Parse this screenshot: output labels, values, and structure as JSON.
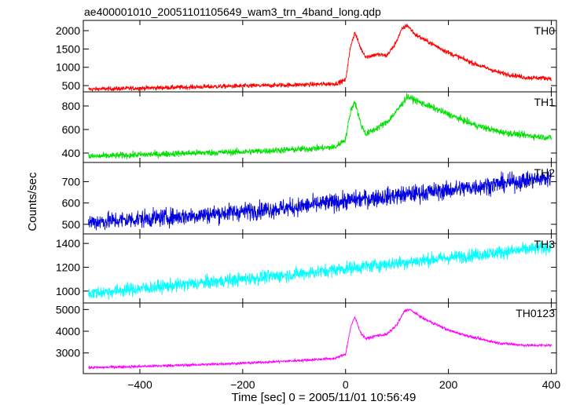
{
  "title": "ae400001010_20051101105649_wam3_trn_4band_long.qdp",
  "ylabel": "Counts/sec",
  "xlabel": "Time [sec] 0 = 2005/11/01 10:56:49",
  "chart_data": [
    {
      "type": "line",
      "name": "TH0",
      "color": "#ff0000",
      "xlim": [
        -510,
        410
      ],
      "ylim": [
        330,
        2280
      ],
      "yticks": [
        500,
        1000,
        1500,
        2000
      ],
      "noise": 45,
      "x": [
        -500,
        -400,
        -300,
        -200,
        -100,
        -20,
        0,
        10,
        18,
        30,
        40,
        60,
        80,
        95,
        110,
        120,
        135,
        160,
        200,
        250,
        300,
        350,
        400
      ],
      "y": [
        400,
        430,
        460,
        490,
        520,
        550,
        650,
        1600,
        1950,
        1500,
        1280,
        1350,
        1320,
        1600,
        2050,
        2150,
        1900,
        1700,
        1400,
        1100,
        850,
        720,
        700
      ]
    },
    {
      "type": "line",
      "name": "TH1",
      "color": "#00e000",
      "xlim": [
        -510,
        410
      ],
      "ylim": [
        320,
        920
      ],
      "yticks": [
        400,
        600,
        800
      ],
      "noise": 20,
      "x": [
        -500,
        -400,
        -300,
        -200,
        -100,
        -20,
        0,
        10,
        18,
        30,
        40,
        60,
        80,
        100,
        120,
        150,
        200,
        250,
        300,
        350,
        400
      ],
      "y": [
        370,
        385,
        400,
        410,
        430,
        450,
        520,
        760,
        840,
        640,
        560,
        610,
        660,
        760,
        880,
        820,
        730,
        640,
        580,
        550,
        530
      ]
    },
    {
      "type": "line",
      "name": "TH2",
      "color": "#0000e0",
      "xlim": [
        -510,
        410
      ],
      "ylim": [
        455,
        790
      ],
      "yticks": [
        500,
        600,
        700
      ],
      "noise": 30,
      "x": [
        -500,
        -300,
        -100,
        0,
        200,
        400
      ],
      "y": [
        510,
        540,
        580,
        610,
        660,
        720
      ]
    },
    {
      "type": "line",
      "name": "TH3",
      "color": "#00ffff",
      "xlim": [
        -510,
        410
      ],
      "ylim": [
        900,
        1480
      ],
      "yticks": [
        1000,
        1200,
        1400
      ],
      "noise": 40,
      "x": [
        -500,
        -300,
        -100,
        0,
        200,
        400
      ],
      "y": [
        980,
        1060,
        1140,
        1190,
        1280,
        1370
      ]
    },
    {
      "type": "line",
      "name": "TH0123",
      "color": "#ff00ff",
      "xlim": [
        -510,
        410
      ],
      "ylim": [
        2050,
        5300
      ],
      "yticks": [
        3000,
        4000,
        5000
      ],
      "noise": 45,
      "xticks": [
        -400,
        -200,
        0,
        200,
        400
      ],
      "x": [
        -500,
        -400,
        -300,
        -200,
        -100,
        -20,
        0,
        10,
        18,
        30,
        40,
        60,
        80,
        100,
        115,
        125,
        150,
        200,
        250,
        300,
        350,
        400
      ],
      "y": [
        2320,
        2380,
        2450,
        2530,
        2640,
        2750,
        2950,
        4200,
        4650,
        3900,
        3650,
        3800,
        3850,
        4300,
        4950,
        5000,
        4600,
        4050,
        3700,
        3450,
        3350,
        3350
      ]
    }
  ]
}
